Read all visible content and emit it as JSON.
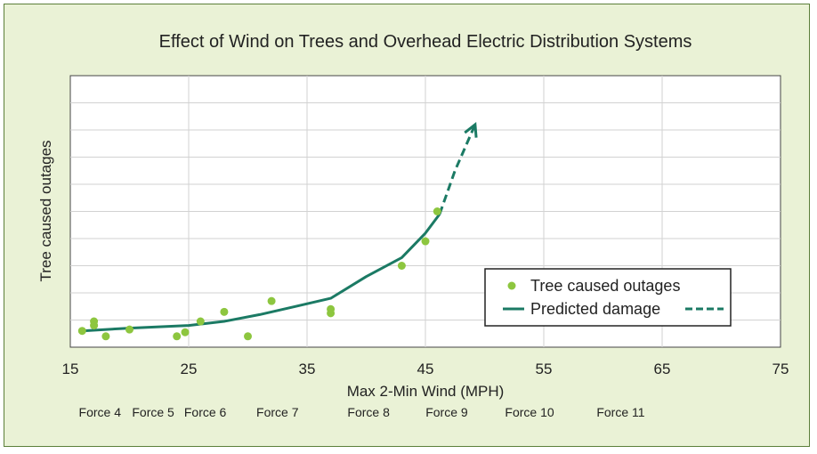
{
  "chart_data": {
    "type": "scatter",
    "title": "Effect of Wind on Trees and Overhead Electric Distribution Systems",
    "xlabel": "Max 2-Min Wind (MPH)",
    "ylabel": "Tree caused outages",
    "xlim": [
      15,
      75
    ],
    "ylim": [
      0,
      10
    ],
    "x_ticks": [
      "15",
      "25",
      "35",
      "45",
      "55",
      "65",
      "75"
    ],
    "x_tick_values": [
      15,
      25,
      35,
      45,
      55,
      65,
      75
    ],
    "y_grid_values": [
      1,
      2,
      3,
      4,
      5,
      6,
      7,
      8,
      9
    ],
    "grid": true,
    "legend_position": "bottom-right",
    "force_labels": [
      {
        "label": "Force 4",
        "x": 17.5
      },
      {
        "label": "Force 5",
        "x": 22
      },
      {
        "label": "Force 6",
        "x": 26.4
      },
      {
        "label": "Force 7",
        "x": 32.5
      },
      {
        "label": "Force 8",
        "x": 40.2
      },
      {
        "label": "Force 9",
        "x": 46.8
      },
      {
        "label": "Force 10",
        "x": 53.8
      },
      {
        "label": "Force 11",
        "x": 61.5
      }
    ],
    "series": [
      {
        "name": "Tree caused outages",
        "kind": "scatter",
        "color": "#8dc63f",
        "points": [
          [
            16,
            0.6
          ],
          [
            17,
            0.8
          ],
          [
            17,
            0.95
          ],
          [
            18,
            0.4
          ],
          [
            20,
            0.65
          ],
          [
            24,
            0.4
          ],
          [
            24.7,
            0.55
          ],
          [
            26,
            0.95
          ],
          [
            28,
            1.3
          ],
          [
            30,
            0.4
          ],
          [
            32,
            1.7
          ],
          [
            37,
            1.25
          ],
          [
            37,
            1.4
          ],
          [
            43,
            3.0
          ],
          [
            45,
            3.9
          ],
          [
            46,
            5.0
          ]
        ]
      },
      {
        "name": "Predicted damage",
        "kind": "line",
        "color": "#1b7a64",
        "solid_points": [
          [
            16,
            0.6
          ],
          [
            20,
            0.7
          ],
          [
            25,
            0.8
          ],
          [
            28,
            0.95
          ],
          [
            31,
            1.2
          ],
          [
            34,
            1.5
          ],
          [
            37,
            1.8
          ],
          [
            40,
            2.6
          ],
          [
            43,
            3.3
          ],
          [
            45,
            4.2
          ],
          [
            46.2,
            4.9
          ]
        ],
        "dashed_points": [
          [
            46.2,
            4.9
          ],
          [
            47.5,
            6.5
          ],
          [
            49.2,
            8.2
          ]
        ]
      }
    ]
  },
  "colors": {
    "background": "#eaf2d6",
    "border": "#5c7f3a",
    "plot_bg": "#ffffff",
    "grid": "#d2d2d2"
  }
}
